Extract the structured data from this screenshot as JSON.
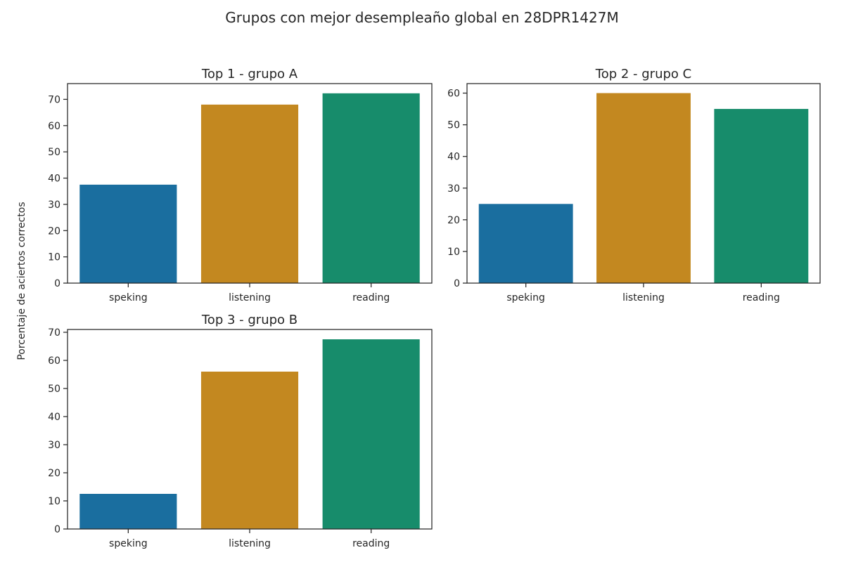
{
  "figure": {
    "title": "Grupos con mejor desempleaño global en 28DPR1427M",
    "ylabel": "Porcentaje de aciertos correctos"
  },
  "palette": [
    "#1a6e9f",
    "#c38820",
    "#178c6b"
  ],
  "chart_data": [
    {
      "type": "bar",
      "title": "Top  1 - grupo A",
      "categories": [
        "speking",
        "listening",
        "reading"
      ],
      "values": [
        37.5,
        68,
        72.3
      ],
      "ylim": [
        0,
        76
      ],
      "yticks": [
        0,
        10,
        20,
        30,
        40,
        50,
        60,
        70
      ],
      "grid": false
    },
    {
      "type": "bar",
      "title": "Top  2 - grupo C",
      "categories": [
        "speking",
        "listening",
        "reading"
      ],
      "values": [
        25,
        60,
        55
      ],
      "ylim": [
        0,
        63
      ],
      "yticks": [
        0,
        10,
        20,
        30,
        40,
        50,
        60
      ],
      "grid": false
    },
    {
      "type": "bar",
      "title": "Top  3 - grupo B",
      "categories": [
        "speking",
        "listening",
        "reading"
      ],
      "values": [
        12.5,
        56,
        67.5
      ],
      "ylim": [
        0,
        71
      ],
      "yticks": [
        0,
        10,
        20,
        30,
        40,
        50,
        60,
        70
      ],
      "grid": false
    }
  ]
}
